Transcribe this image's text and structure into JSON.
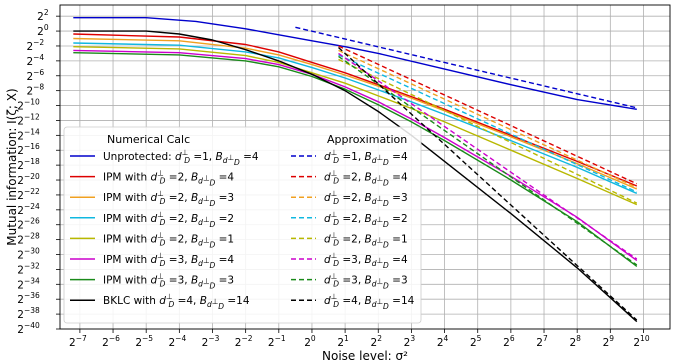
{
  "chart_data": {
    "type": "line",
    "xscale": "log2",
    "yscale": "log2",
    "xlabel": "Noise level: σ²",
    "ylabel": "Mutual information: I(ζ; X)",
    "x_ticks_exp": [
      -7,
      -6,
      -5,
      -4,
      -3,
      -2,
      -1,
      0,
      1,
      2,
      3,
      4,
      5,
      6,
      7,
      8,
      9,
      10
    ],
    "y_ticks_exp": [
      2,
      0,
      -2,
      -4,
      -6,
      -8,
      -10,
      -12,
      -14,
      -16,
      -18,
      -20,
      -22,
      -24,
      -26,
      -28,
      -30,
      -32,
      -34,
      -36,
      -38,
      -40
    ],
    "xlim_exp": [
      -7.6,
      10.8
    ],
    "ylim_exp": [
      -40,
      3.5
    ],
    "grid": true,
    "legend_placement": "lower-left",
    "legend_headers": [
      "Numerical Calc",
      "Approximation"
    ],
    "series": [
      {
        "name": "Unprotected: d⊥=1, B=4",
        "d": "1",
        "b": "4",
        "prefix": "Unprotected: ",
        "color": "#0000cc",
        "style": "solid",
        "x_exp": [
          -7.2,
          -5,
          -3.5,
          -2,
          -1,
          0,
          1,
          2,
          4,
          6,
          8,
          9.8
        ],
        "y_exp": [
          1.8,
          1.8,
          1.3,
          0.3,
          -0.5,
          -1.3,
          -2.1,
          -3.0,
          -5.1,
          -7.2,
          -9.2,
          -10.5
        ]
      },
      {
        "name": "IPM with d⊥=2, B=4",
        "d": "2",
        "b": "4",
        "prefix": "IPM with ",
        "color": "#dd0000",
        "style": "solid",
        "x_exp": [
          -7.2,
          -4,
          -2,
          -1,
          0,
          1,
          2,
          3,
          4,
          6,
          8,
          9.8
        ],
        "y_exp": [
          -0.4,
          -0.8,
          -1.8,
          -2.8,
          -4.2,
          -5.6,
          -7.2,
          -8.8,
          -10.5,
          -14.0,
          -17.5,
          -20.8
        ]
      },
      {
        "name": "IPM with d⊥=2, B=3",
        "d": "2",
        "b": "3",
        "prefix": "IPM with ",
        "color": "#f0a020",
        "style": "solid",
        "x_exp": [
          -7.2,
          -4,
          -2,
          -1,
          0,
          1,
          2,
          3,
          4,
          6,
          8,
          9.8
        ],
        "y_exp": [
          -1.0,
          -1.3,
          -2.3,
          -3.2,
          -4.5,
          -5.9,
          -7.4,
          -9.0,
          -10.7,
          -14.2,
          -17.8,
          -21.2
        ]
      },
      {
        "name": "IPM with d⊥=2, B=2",
        "d": "2",
        "b": "2",
        "prefix": "IPM with ",
        "color": "#10b8e0",
        "style": "solid",
        "x_exp": [
          -7.2,
          -4,
          -2,
          -1,
          0,
          1,
          2,
          3,
          4,
          6,
          8,
          9.8
        ],
        "y_exp": [
          -1.6,
          -1.9,
          -2.8,
          -3.6,
          -4.9,
          -6.3,
          -7.9,
          -9.5,
          -11.2,
          -14.7,
          -18.3,
          -21.8
        ]
      },
      {
        "name": "IPM with d⊥=2, B=1",
        "d": "2",
        "b": "1",
        "prefix": "IPM with ",
        "color": "#b8b800",
        "style": "solid",
        "x_exp": [
          -7.2,
          -4,
          -2,
          -1,
          0,
          1,
          2,
          3,
          4,
          6,
          8,
          9.8
        ],
        "y_exp": [
          -2.1,
          -2.4,
          -3.3,
          -4.2,
          -5.6,
          -7.0,
          -8.7,
          -10.4,
          -12.2,
          -16.0,
          -19.8,
          -23.3
        ]
      },
      {
        "name": "IPM with d⊥=3, B=4",
        "d": "3",
        "b": "4",
        "prefix": "IPM with ",
        "color": "#cc00cc",
        "style": "solid",
        "x_exp": [
          -7.2,
          -4,
          -2,
          -1,
          0,
          1,
          2,
          3,
          4,
          6,
          8,
          9.8
        ],
        "y_exp": [
          -2.6,
          -2.9,
          -3.7,
          -4.5,
          -5.8,
          -7.5,
          -9.5,
          -11.8,
          -14.3,
          -19.5,
          -25.0,
          -30.8
        ]
      },
      {
        "name": "IPM with d⊥=3, B=3",
        "d": "3",
        "b": "3",
        "prefix": "IPM with ",
        "color": "#1a8a1a",
        "style": "solid",
        "x_exp": [
          -7.2,
          -4,
          -2,
          -1,
          0,
          1,
          2,
          3,
          4,
          6,
          8,
          9.8
        ],
        "y_exp": [
          -2.9,
          -3.2,
          -4.0,
          -4.8,
          -6.1,
          -7.8,
          -9.9,
          -12.2,
          -14.7,
          -20.0,
          -25.6,
          -31.6
        ]
      },
      {
        "name": "BKLC with d⊥=4, B=14",
        "d": "4",
        "b": "14",
        "prefix": "BKLC with ",
        "color": "#000000",
        "style": "solid",
        "x_exp": [
          -7.2,
          -5,
          -4,
          -3,
          -2,
          -1,
          0,
          1,
          2,
          3,
          4,
          6,
          8,
          9.8
        ],
        "y_exp": [
          0.0,
          0.0,
          -0.4,
          -1.2,
          -2.5,
          -4.0,
          -5.8,
          -8.0,
          -10.8,
          -14.0,
          -17.5,
          -24.5,
          -31.8,
          -39.0
        ]
      },
      {
        "name": "Approx d⊥=1, B=4",
        "d": "1",
        "b": "4",
        "color": "#0000cc",
        "style": "dashed",
        "x_exp": [
          -0.5,
          9.8
        ],
        "y_exp": [
          0.5,
          -10.3
        ]
      },
      {
        "name": "Approx d⊥=2, B=4",
        "d": "2",
        "b": "4",
        "color": "#dd0000",
        "style": "dashed",
        "x_exp": [
          0.8,
          9.8
        ],
        "y_exp": [
          -2.0,
          -20.5
        ]
      },
      {
        "name": "Approx d⊥=2, B=3",
        "d": "2",
        "b": "3",
        "color": "#f0a020",
        "style": "dashed",
        "x_exp": [
          0.8,
          9.8
        ],
        "y_exp": [
          -2.6,
          -21.0
        ]
      },
      {
        "name": "Approx d⊥=2, B=2",
        "d": "2",
        "b": "2",
        "color": "#10b8e0",
        "style": "dashed",
        "x_exp": [
          0.8,
          9.8
        ],
        "y_exp": [
          -3.2,
          -21.6
        ]
      },
      {
        "name": "Approx d⊥=2, B=1",
        "d": "2",
        "b": "1",
        "color": "#b8b800",
        "style": "dashed",
        "x_exp": [
          0.8,
          9.8
        ],
        "y_exp": [
          -3.8,
          -23.1
        ]
      },
      {
        "name": "Approx d⊥=3, B=4",
        "d": "3",
        "b": "4",
        "color": "#cc00cc",
        "style": "dashed",
        "x_exp": [
          0.8,
          9.8
        ],
        "y_exp": [
          -3.0,
          -30.6
        ]
      },
      {
        "name": "Approx d⊥=3, B=3",
        "d": "3",
        "b": "3",
        "color": "#1a8a1a",
        "style": "dashed",
        "x_exp": [
          0.8,
          9.8
        ],
        "y_exp": [
          -3.4,
          -31.4
        ]
      },
      {
        "name": "Approx d⊥=4, B=14",
        "d": "4",
        "b": "14",
        "color": "#000000",
        "style": "dashed",
        "x_exp": [
          0.8,
          9.8
        ],
        "y_exp": [
          -2.2,
          -38.8
        ]
      }
    ]
  }
}
